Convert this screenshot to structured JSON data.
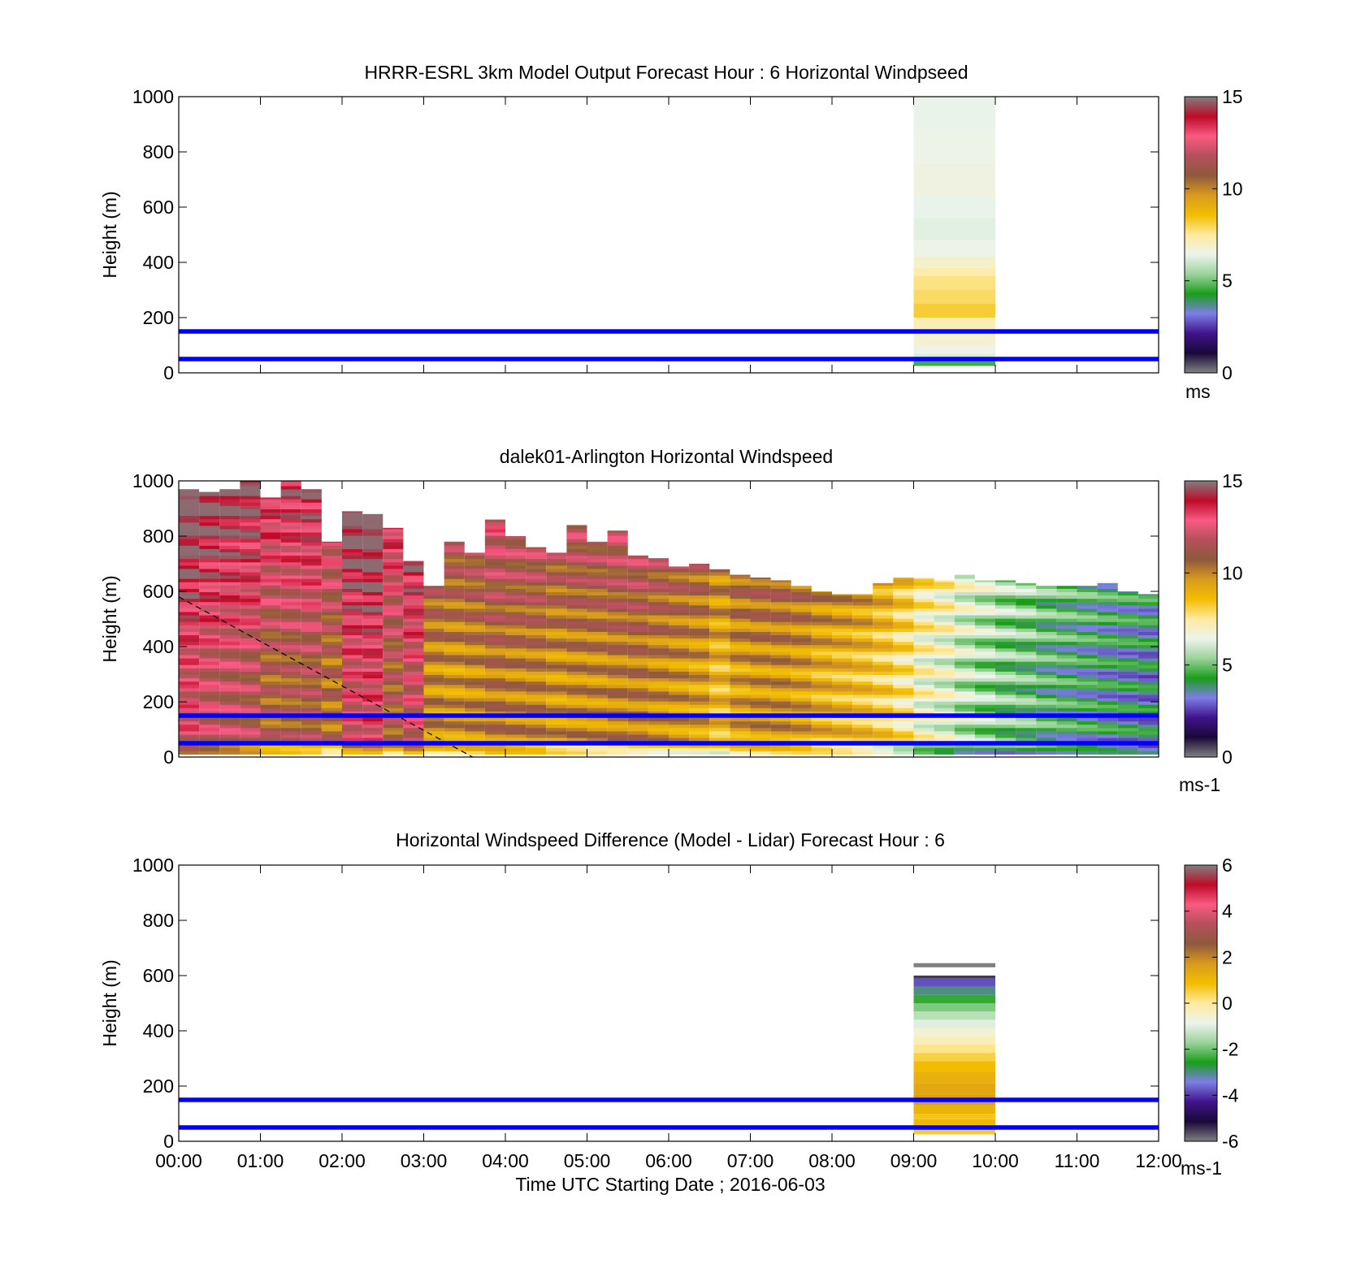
{
  "figure": {
    "xaxis_label": "Time UTC  Starting Date ; 2016-06-03",
    "colorbar_ticks_speed": [
      "0",
      "5",
      "10",
      "15"
    ],
    "colorbar_ticks_diff": [
      "-6",
      "-4",
      "-2",
      "0",
      "2",
      "4",
      "6"
    ],
    "colors": {
      "reference_line": "#0000ff",
      "axis": "#000000",
      "background": "#ffffff"
    },
    "speed_colormap": [
      "#808080",
      "#1a0838",
      "#40148c",
      "#7e7ee6",
      "#1a9e1a",
      "#9bd39b",
      "#ecf4ec",
      "#ffeaa0",
      "#f2be00",
      "#d99a1e",
      "#8e5a3c",
      "#b4505a",
      "#fa5a82",
      "#be0a28",
      "#808080"
    ],
    "diff_colormap": [
      "#808080",
      "#1a0838",
      "#40148c",
      "#7e7ee6",
      "#1a9e1a",
      "#9bd39b",
      "#ecf4ec",
      "#ffeaa0",
      "#f2be00",
      "#d99a1e",
      "#8e5a3c",
      "#b4505a",
      "#fa5a82",
      "#be0a28",
      "#808080"
    ]
  },
  "chart_data": [
    {
      "type": "heatmap",
      "title": "HRRR-ESRL 3km Model Output   Forecast Hour : 6 Horizontal Windpseed",
      "xlabel": "",
      "ylabel": "Height (m)",
      "colorbar_label": "ms",
      "x_ticks": [
        "00:00",
        "01:00",
        "02:00",
        "03:00",
        "04:00",
        "05:00",
        "06:00",
        "07:00",
        "08:00",
        "09:00",
        "10:00",
        "11:00",
        "12:00"
      ],
      "y_ticks": [
        "0",
        "200",
        "400",
        "600",
        "800",
        "1000"
      ],
      "xlim": [
        0,
        12
      ],
      "ylim": [
        0,
        1000
      ],
      "clim": [
        0,
        15
      ],
      "reference_lines_m": [
        50,
        150
      ],
      "columns": [
        {
          "t_start": 9.0,
          "t_end": 10.0,
          "cells": [
            {
              "z0": 25,
              "z1": 45,
              "v": 4.6
            },
            {
              "z0": 45,
              "z1": 70,
              "v": 6.2
            },
            {
              "z0": 70,
              "z1": 100,
              "v": 6.5
            },
            {
              "z0": 100,
              "z1": 160,
              "v": 6.8
            },
            {
              "z0": 160,
              "z1": 200,
              "v": 7.2
            },
            {
              "z0": 200,
              "z1": 250,
              "v": 8.2
            },
            {
              "z0": 250,
              "z1": 300,
              "v": 7.9
            },
            {
              "z0": 300,
              "z1": 350,
              "v": 7.7
            },
            {
              "z0": 350,
              "z1": 380,
              "v": 7.3
            },
            {
              "z0": 380,
              "z1": 420,
              "v": 6.9
            },
            {
              "z0": 420,
              "z1": 480,
              "v": 6.5
            },
            {
              "z0": 480,
              "z1": 560,
              "v": 6.3
            },
            {
              "z0": 560,
              "z1": 640,
              "v": 6.4
            },
            {
              "z0": 640,
              "z1": 760,
              "v": 6.6
            },
            {
              "z0": 760,
              "z1": 880,
              "v": 6.5
            },
            {
              "z0": 880,
              "z1": 1000,
              "v": 6.4
            }
          ]
        }
      ]
    },
    {
      "type": "heatmap",
      "title": "dalek01-Arlington  Horizontal Windspeed",
      "xlabel": "",
      "ylabel": "Height (m)",
      "colorbar_label": "ms-1",
      "x_ticks": [
        "00:00",
        "01:00",
        "02:00",
        "03:00",
        "04:00",
        "05:00",
        "06:00",
        "07:00",
        "08:00",
        "09:00",
        "10:00",
        "11:00",
        "12:00"
      ],
      "y_ticks": [
        "0",
        "200",
        "400",
        "600",
        "800",
        "1000"
      ],
      "xlim": [
        0,
        12
      ],
      "ylim": [
        0,
        1000
      ],
      "clim": [
        0,
        15
      ],
      "reference_lines_m": [
        50,
        150
      ],
      "dashed_line": {
        "x": [
          0.0,
          3.6
        ],
        "y": [
          580,
          0
        ]
      },
      "column_width_h": 0.25,
      "column_times_h": [
        0.0,
        0.25,
        0.5,
        0.75,
        1.0,
        1.25,
        1.5,
        1.75,
        2.0,
        2.25,
        2.5,
        2.75,
        3.0,
        3.25,
        3.5,
        3.75,
        4.0,
        4.25,
        4.5,
        4.75,
        5.0,
        5.25,
        5.5,
        5.75,
        6.0,
        6.25,
        6.5,
        6.75,
        7.0,
        7.25,
        7.5,
        7.75,
        8.0,
        8.25,
        8.5,
        8.75,
        9.0,
        9.25,
        9.5,
        9.75,
        10.0,
        10.25,
        10.5,
        10.75,
        11.0,
        11.25,
        11.5,
        11.75
      ],
      "column_tops_m": [
        970,
        960,
        970,
        1000,
        940,
        1000,
        970,
        780,
        890,
        880,
        830,
        710,
        620,
        780,
        740,
        860,
        800,
        760,
        740,
        840,
        780,
        820,
        730,
        720,
        690,
        700,
        680,
        660,
        650,
        640,
        620,
        600,
        590,
        590,
        630,
        650,
        650,
        640,
        660,
        640,
        640,
        630,
        620,
        620,
        620,
        630,
        600,
        590
      ],
      "column_speeds_ms": [
        12.5,
        12.0,
        11.8,
        11.6,
        10.8,
        11.0,
        11.2,
        10.5,
        12.5,
        12.8,
        11.0,
        12.2,
        9.8,
        9.6,
        9.8,
        10.2,
        10.0,
        10.0,
        9.6,
        9.8,
        9.8,
        10.0,
        10.1,
        9.8,
        9.6,
        9.4,
        8.8,
        9.4,
        9.6,
        9.6,
        9.4,
        9.0,
        8.8,
        8.6,
        8.2,
        7.6,
        6.8,
        6.4,
        5.8,
        5.4,
        5.0,
        4.8,
        4.4,
        4.2,
        4.0,
        3.8,
        3.7,
        3.6
      ]
    },
    {
      "type": "heatmap",
      "title": "Horizontal Windspeed Difference (Model - Lidar) Forecast Hour : 6",
      "xlabel": "Time UTC  Starting Date ; 2016-06-03",
      "ylabel": "Height (m)",
      "colorbar_label": "ms-1",
      "x_ticks": [
        "00:00",
        "01:00",
        "02:00",
        "03:00",
        "04:00",
        "05:00",
        "06:00",
        "07:00",
        "08:00",
        "09:00",
        "10:00",
        "11:00",
        "12:00"
      ],
      "y_ticks": [
        "0",
        "200",
        "400",
        "600",
        "800",
        "1000"
      ],
      "xlim": [
        0,
        12
      ],
      "ylim": [
        0,
        1000
      ],
      "clim": [
        -6,
        6
      ],
      "reference_lines_m": [
        50,
        150
      ],
      "columns": [
        {
          "t_start": 9.0,
          "t_end": 10.0,
          "cells": [
            {
              "z0": 25,
              "z1": 40,
              "v": 0.6
            },
            {
              "z0": 40,
              "z1": 60,
              "v": 0.8
            },
            {
              "z0": 60,
              "z1": 80,
              "v": 1.0
            },
            {
              "z0": 80,
              "z1": 100,
              "v": 0.7
            },
            {
              "z0": 100,
              "z1": 130,
              "v": 1.1
            },
            {
              "z0": 130,
              "z1": 170,
              "v": 1.6
            },
            {
              "z0": 170,
              "z1": 210,
              "v": 1.4
            },
            {
              "z0": 210,
              "z1": 250,
              "v": 1.2
            },
            {
              "z0": 250,
              "z1": 290,
              "v": 0.9
            },
            {
              "z0": 290,
              "z1": 320,
              "v": 0.5
            },
            {
              "z0": 320,
              "z1": 350,
              "v": 0.1
            },
            {
              "z0": 350,
              "z1": 380,
              "v": -0.3
            },
            {
              "z0": 380,
              "z1": 410,
              "v": -0.6
            },
            {
              "z0": 410,
              "z1": 440,
              "v": -1.0
            },
            {
              "z0": 440,
              "z1": 470,
              "v": -1.4
            },
            {
              "z0": 470,
              "z1": 500,
              "v": -1.9
            },
            {
              "z0": 500,
              "z1": 530,
              "v": -2.4
            },
            {
              "z0": 530,
              "z1": 560,
              "v": -3.0
            },
            {
              "z0": 560,
              "z1": 590,
              "v": -3.8
            },
            {
              "z0": 590,
              "z1": 600,
              "v": -5.5
            },
            {
              "z0": 630,
              "z1": 645,
              "v": -6.0
            }
          ]
        }
      ]
    }
  ]
}
